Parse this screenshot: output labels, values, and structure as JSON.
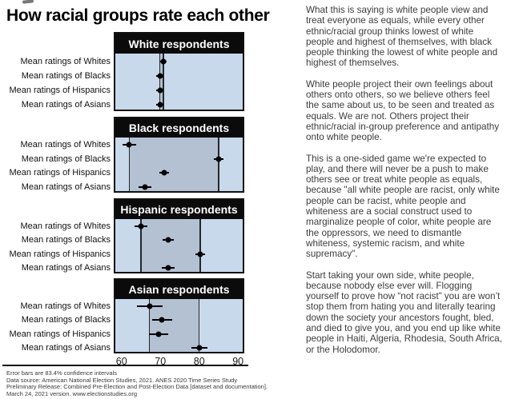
{
  "title": "How racial groups rate each other",
  "chart_data": {
    "type": "scatter",
    "subtype": "dot-plot-with-error-bars",
    "x_domain": [
      58.4,
      91.2
    ],
    "x_ticks": [
      60,
      70,
      80,
      90
    ],
    "row_labels": [
      "Mean ratings of Whites",
      "Mean ratings of Blacks",
      "Mean ratings of Hispanics",
      "Mean ratings of Asians"
    ],
    "panels": [
      {
        "title": "White respondents",
        "values": [
          70.8,
          69.9,
          69.9,
          69.9
        ],
        "ci_half": [
          0.9,
          0.9,
          0.9,
          0.9
        ],
        "band": [
          69.9,
          70.8
        ]
      },
      {
        "title": "Black respondents",
        "values": [
          62,
          85,
          71,
          66
        ],
        "ci_half": [
          1.8,
          1.3,
          1.3,
          1.7
        ],
        "band": [
          62,
          85
        ]
      },
      {
        "title": "Hispanic respondents",
        "values": [
          65,
          72,
          80.3,
          72
        ],
        "ci_half": [
          1.6,
          1.5,
          1.2,
          1.6
        ],
        "band": [
          65,
          80.3
        ]
      },
      {
        "title": "Asian respondents",
        "values": [
          67.2,
          70.4,
          69.6,
          80
        ],
        "ci_half": [
          3.3,
          2.6,
          2.5,
          2.1
        ],
        "band": [
          67.2,
          80
        ]
      }
    ],
    "colors": {
      "plot_bg": "#c9d9ec",
      "band_bg": "#b3c1d2",
      "header_bg": "#0b0b0b",
      "header_text": "#ffffff",
      "dot": "#000000"
    },
    "legend": "none",
    "grid": false
  },
  "footnotes": [
    "Error bars are 83.4% confidence intervals",
    "Data source: American National Election Studies, 2021. ANES 2020 Time Series Study",
    "Preliminary Release: Combined Pre-Election and Post-Election Data [dataset and documentation].",
    "March 24, 2021 version. www.electionstudies.org"
  ],
  "commentary": {
    "paragraphs": [
      "What this is saying is white people view and treat everyone as equals, while every other ethnic/racial group thinks lowest of white people and highest of themselves, with black people thinking the lowest of white people and highest of themselves.",
      "White people project their own feelings about others onto others, so we believe others feel the same about us, to be seen and treated as equals. We are not. Others project their ethnic/racial in-group preference and antipathy onto white people.",
      "This is a one-sided game we're expected to play, and there will never be a push to make others see or treat white people as equals, because \"all white people are racist, only white people can be racist, white people and whiteness are a social construct used to marginalize people of color, white people are the oppressors, we need to dismantle whiteness, systemic racism, and white supremacy\".",
      "Start taking your own side, white people, because nobody else ever will. Flogging yourself to prove how “not racist” you are won’t stop them from hating you and literally tearing down the society your ancestors fought, bled, and died to give you, and you end up like white people in Haiti, Algeria, Rhodesia, South Africa, or the Holodomor."
    ]
  }
}
